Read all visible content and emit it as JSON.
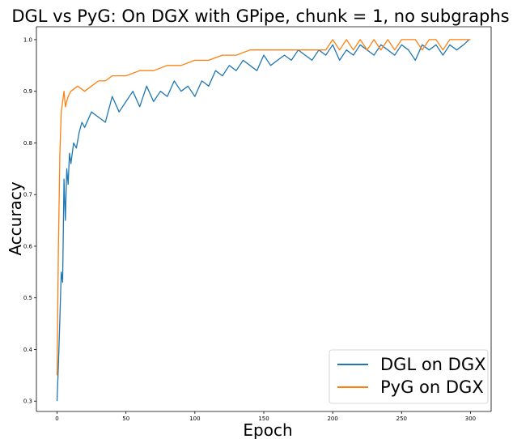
{
  "chart_data": {
    "type": "line",
    "title": "DGL vs PyG: On DGX with GPipe, chunk = 1, no subgraphs",
    "xlabel": "Epoch",
    "ylabel": "Accuracy",
    "xlim": [
      -15,
      315
    ],
    "ylim": [
      0.28,
      1.025
    ],
    "x_ticks": [
      0,
      50,
      100,
      150,
      200,
      250,
      300
    ],
    "y_ticks": [
      0.3,
      0.4,
      0.5,
      0.6,
      0.7,
      0.8,
      0.9,
      1.0
    ],
    "x_tick_labels": [
      "0",
      "50",
      "100",
      "150",
      "200",
      "250",
      "300"
    ],
    "y_tick_labels": [
      "0.3",
      "0.4",
      "0.5",
      "0.6",
      "0.7",
      "0.8",
      "0.9",
      "1.0"
    ],
    "grid": false,
    "legend_position": "lower-right",
    "series": [
      {
        "name": "DGL on DGX",
        "color": "#1f77b4",
        "x": [
          0,
          1,
          2,
          3,
          4,
          5,
          6,
          7,
          8,
          9,
          10,
          12,
          14,
          16,
          18,
          20,
          25,
          30,
          35,
          40,
          45,
          50,
          55,
          60,
          65,
          70,
          75,
          80,
          85,
          90,
          95,
          100,
          105,
          110,
          115,
          120,
          125,
          130,
          135,
          140,
          145,
          150,
          155,
          160,
          165,
          170,
          175,
          180,
          185,
          190,
          195,
          200,
          205,
          210,
          215,
          220,
          225,
          230,
          235,
          240,
          245,
          250,
          255,
          260,
          265,
          270,
          275,
          280,
          285,
          290,
          295,
          299
        ],
        "y": [
          0.3,
          0.37,
          0.46,
          0.55,
          0.53,
          0.73,
          0.65,
          0.75,
          0.72,
          0.78,
          0.76,
          0.8,
          0.79,
          0.82,
          0.84,
          0.83,
          0.86,
          0.85,
          0.84,
          0.89,
          0.86,
          0.88,
          0.9,
          0.87,
          0.91,
          0.88,
          0.9,
          0.89,
          0.92,
          0.9,
          0.91,
          0.89,
          0.92,
          0.91,
          0.94,
          0.93,
          0.95,
          0.94,
          0.96,
          0.95,
          0.94,
          0.97,
          0.95,
          0.96,
          0.97,
          0.96,
          0.98,
          0.97,
          0.96,
          0.98,
          0.97,
          0.99,
          0.96,
          0.98,
          0.97,
          0.99,
          0.98,
          0.97,
          0.99,
          0.98,
          0.97,
          0.99,
          0.98,
          0.96,
          0.99,
          0.98,
          0.99,
          0.97,
          0.99,
          0.98,
          0.99,
          1.0
        ]
      },
      {
        "name": "PyG on DGX",
        "color": "#ff7f0e",
        "x": [
          0,
          1,
          2,
          3,
          5,
          6,
          8,
          10,
          15,
          20,
          25,
          30,
          35,
          40,
          45,
          50,
          60,
          70,
          80,
          90,
          100,
          110,
          120,
          130,
          140,
          150,
          160,
          170,
          180,
          190,
          195,
          200,
          205,
          210,
          215,
          220,
          225,
          230,
          235,
          240,
          245,
          250,
          255,
          260,
          265,
          270,
          275,
          280,
          285,
          290,
          295,
          300
        ],
        "y": [
          0.35,
          0.6,
          0.78,
          0.86,
          0.9,
          0.87,
          0.89,
          0.9,
          0.91,
          0.9,
          0.91,
          0.92,
          0.92,
          0.93,
          0.93,
          0.93,
          0.94,
          0.94,
          0.95,
          0.95,
          0.96,
          0.96,
          0.97,
          0.97,
          0.98,
          0.98,
          0.98,
          0.98,
          0.98,
          0.98,
          0.98,
          1.0,
          0.98,
          1.0,
          0.98,
          1.0,
          0.98,
          1.0,
          0.98,
          1.0,
          0.98,
          1.0,
          1.0,
          1.0,
          0.98,
          1.0,
          1.0,
          0.98,
          1.0,
          1.0,
          1.0,
          1.0
        ]
      }
    ]
  }
}
